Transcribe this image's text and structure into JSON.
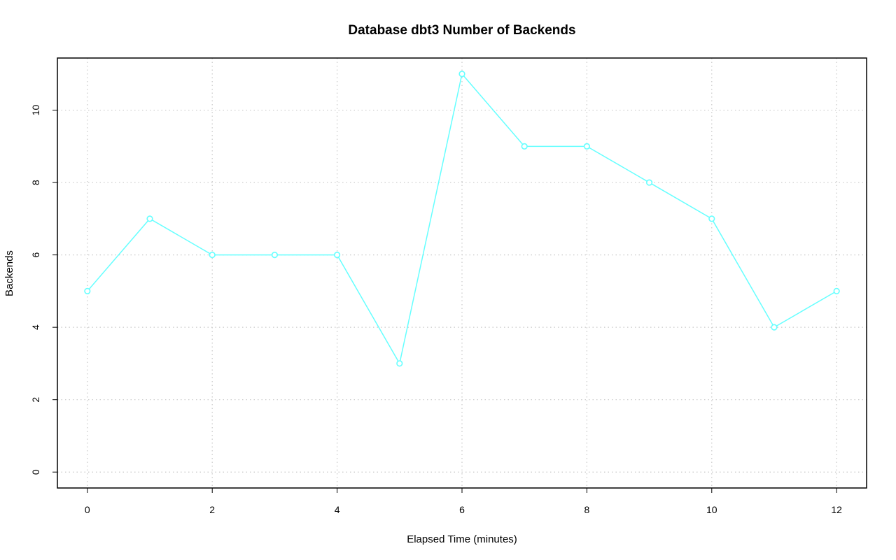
{
  "chart_data": {
    "type": "line",
    "title": "Database dbt3 Number of Backends",
    "xlabel": "Elapsed Time (minutes)",
    "ylabel": "Backends",
    "x": [
      0,
      1,
      2,
      3,
      4,
      5,
      6,
      7,
      8,
      9,
      10,
      11,
      12
    ],
    "series": [
      {
        "values": [
          5,
          7,
          6,
          6,
          6,
          3,
          11,
          9,
          9,
          8,
          7,
          4,
          5
        ],
        "color": "#66ffff",
        "marker": "open-circle"
      }
    ],
    "xticks": [
      0,
      2,
      4,
      6,
      8,
      10,
      12
    ],
    "yticks": [
      0,
      2,
      4,
      6,
      8,
      10
    ],
    "xlim": [
      -0.48,
      12.48
    ],
    "ylim": [
      -0.44,
      11.44
    ],
    "grid": true
  }
}
